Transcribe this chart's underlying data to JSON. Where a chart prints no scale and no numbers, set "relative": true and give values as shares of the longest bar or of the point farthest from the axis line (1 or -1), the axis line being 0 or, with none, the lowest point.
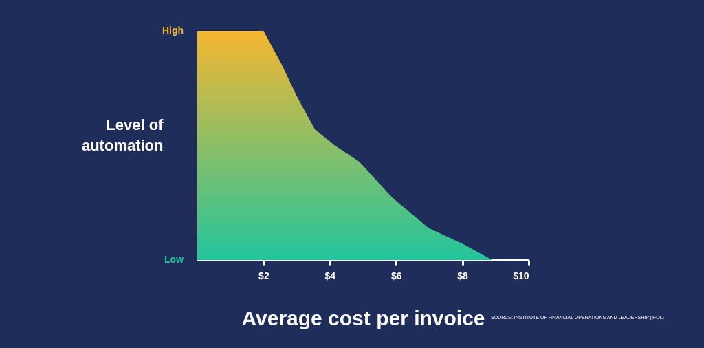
{
  "chart_data": {
    "type": "area",
    "xlabel": "Average cost per invoice",
    "ylabel": "Level of automation",
    "x": [
      0,
      2.0,
      2.56,
      3.02,
      3.55,
      4.15,
      4.88,
      5.9,
      6.98,
      8.02,
      8.9
    ],
    "series": [
      {
        "colors": [
          "#f5b731",
          "#f5b731",
          "#d5b941",
          "#b8bb50",
          "#9abd5f",
          "#8cbe66",
          "#7dbf6e",
          "#5bc17f",
          "#40c38d",
          "#31c495",
          "#22c59c"
        ],
        "values": [
          1,
          1,
          0.85,
          0.71,
          0.57,
          0.5,
          0.43,
          0.27,
          0.14,
          0.07,
          0
        ]
      }
    ],
    "relative": true,
    "xlim": [
      0,
      10
    ],
    "xticks": [
      {
        "value": 2,
        "label": "$2"
      },
      {
        "value": 4,
        "label": "$4"
      },
      {
        "value": 6,
        "label": "$6"
      },
      {
        "value": 8,
        "label": "$8"
      },
      {
        "value": 10,
        "label": "$10"
      }
    ],
    "grid": false,
    "annotations": [
      "High",
      "Low",
      "SOURCE:   INSTITUTE OF FINANCIAL OPERATIONS AND LEADERSHIP (IFOL)"
    ]
  }
}
